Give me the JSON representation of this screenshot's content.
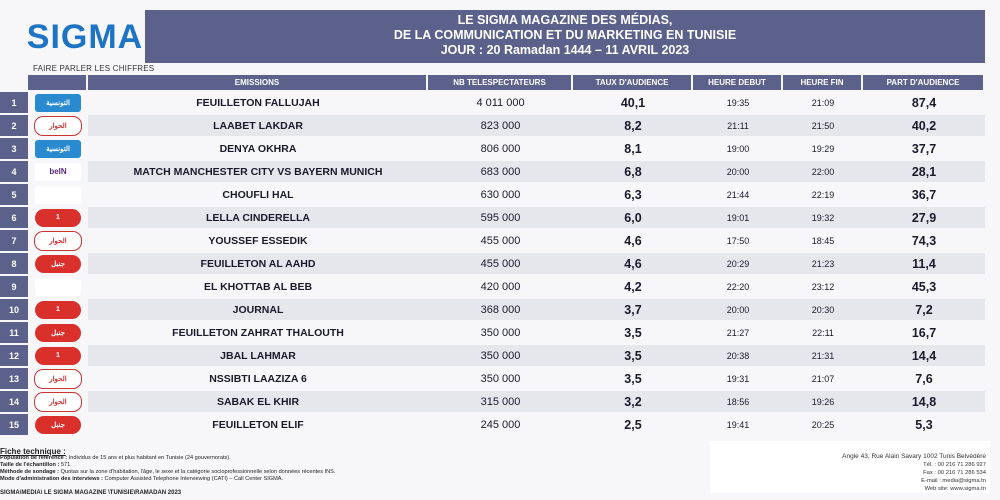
{
  "header": {
    "logo": "SIGMA",
    "tagline": "FAIRE PARLER LES CHIFFRES",
    "title_line1": "LE SIGMA MAGAZINE DES MÉDIAS,",
    "title_line2": "DE LA COMMUNICATION ET DU MARKETING EN TUNISIE",
    "title_line3": "JOUR  : 20 Ramadan 1444 – 11 AVRIL 2023"
  },
  "columns": {
    "emissions": "EMISSIONS",
    "nb": "NB TELESPECTATEURS",
    "taux": "TAUX D'AUDIENCE",
    "debut": "HEURE DEBUT",
    "fin": "HEURE FIN",
    "part": "PART D'AUDIENCE"
  },
  "rows": [
    {
      "rank": "1",
      "channel": "watania",
      "channel_text": "التونسية",
      "emission": "FEUILLETON FALLUJAH",
      "nb": "4 011 000",
      "taux": "40,1",
      "debut": "19:35",
      "fin": "21:09",
      "part": "87,4"
    },
    {
      "rank": "2",
      "channel": "hiwar",
      "channel_text": "الحوار",
      "emission": "LAABET LAKDAR",
      "nb": "823 000",
      "taux": "8,2",
      "debut": "21:11",
      "fin": "21:50",
      "part": "40,2"
    },
    {
      "rank": "3",
      "channel": "watania",
      "channel_text": "التونسية",
      "emission": "DENYA OKHRA",
      "nb": "806 000",
      "taux": "8,1",
      "debut": "19:00",
      "fin": "19:29",
      "part": "37,7"
    },
    {
      "rank": "4",
      "channel": "bein",
      "channel_text": "beIN",
      "emission": "MATCH MANCHESTER CITY VS BAYERN MUNICH",
      "nb": "683 000",
      "taux": "6,8",
      "debut": "20:00",
      "fin": "22:00",
      "part": "28,1"
    },
    {
      "rank": "5",
      "channel": "nessma",
      "channel_text": "",
      "emission": "CHOUFLI HAL",
      "nb": "630 000",
      "taux": "6,3",
      "debut": "21:44",
      "fin": "22:19",
      "part": "36,7"
    },
    {
      "rank": "6",
      "channel": "attessia",
      "channel_text": "1",
      "emission": "LELLA CINDERELLA",
      "nb": "595 000",
      "taux": "6,0",
      "debut": "19:01",
      "fin": "19:32",
      "part": "27,9"
    },
    {
      "rank": "7",
      "channel": "hiwar",
      "channel_text": "الحوار",
      "emission": "YOUSSEF ESSEDIK",
      "nb": "455 000",
      "taux": "4,6",
      "debut": "17:50",
      "fin": "18:45",
      "part": "74,3"
    },
    {
      "rank": "8",
      "channel": "elhiwar",
      "channel_text": "جنبل",
      "emission": "FEUILLETON AL AAHD",
      "nb": "455 000",
      "taux": "4,6",
      "debut": "20:29",
      "fin": "21:23",
      "part": "11,4"
    },
    {
      "rank": "9",
      "channel": "nessma",
      "channel_text": "",
      "emission": "EL KHOTTAB AL BEB",
      "nb": "420 000",
      "taux": "4,2",
      "debut": "22:20",
      "fin": "23:12",
      "part": "45,3"
    },
    {
      "rank": "10",
      "channel": "attessia",
      "channel_text": "1",
      "emission": "JOURNAL",
      "nb": "368 000",
      "taux": "3,7",
      "debut": "20:00",
      "fin": "20:30",
      "part": "7,2"
    },
    {
      "rank": "11",
      "channel": "elhiwar",
      "channel_text": "جنبل",
      "emission": "FEUILLETON ZAHRAT THALOUTH",
      "nb": "350 000",
      "taux": "3,5",
      "debut": "21:27",
      "fin": "22:11",
      "part": "16,7"
    },
    {
      "rank": "12",
      "channel": "attessia",
      "channel_text": "1",
      "emission": "JBAL LAHMAR",
      "nb": "350 000",
      "taux": "3,5",
      "debut": "20:38",
      "fin": "21:31",
      "part": "14,4"
    },
    {
      "rank": "13",
      "channel": "hiwar",
      "channel_text": "الحوار",
      "emission": "NSSIBTI LAAZIZA 6",
      "nb": "350 000",
      "taux": "3,5",
      "debut": "19:31",
      "fin": "21:07",
      "part": "7,6"
    },
    {
      "rank": "14",
      "channel": "hiwar",
      "channel_text": "الحوار",
      "emission": "SABAK EL KHIR",
      "nb": "315 000",
      "taux": "3,2",
      "debut": "18:56",
      "fin": "19:26",
      "part": "14,8"
    },
    {
      "rank": "15",
      "channel": "elhiwar",
      "channel_text": "جنبل",
      "emission": "FEUILLETON ELIF",
      "nb": "245 000",
      "taux": "2,5",
      "debut": "19:41",
      "fin": "20:25",
      "part": "5,3"
    }
  ],
  "fiche": {
    "title": "Fiche technique :",
    "population_label": "Population de référence :",
    "population": "Individus de 15 ans et plus habitant en Tunisie (24 gouvernorats).",
    "taille_label": "Taille de l'échantillon :",
    "taille": "571",
    "methode_label": "Méthode de sondage :",
    "methode": "Quotas sur la zone d'habitation, l'âge, le sexe et la catégorie socioprofessionnelle selon données récentes INS.",
    "mode_label": "Mode d'administration des interviews :",
    "mode": "Computer Assisted Telephone Interviewing (CATI) – Call Center SIGMA."
  },
  "footer": {
    "path": "SIGMA\\MEDIA\\ LE SIGMA MAGAZINE \\TUNISIE\\RAMADAN 2023",
    "address": "Angle 43, Rue Alain Savary 1002 Tunis Belvédère",
    "tel": "Tél. : 00 216 71 286 927",
    "fax": "Fax : 00 216 71 286 534",
    "email": "E-mail : media@sigma.tn",
    "web": "Web site: www.sigma.tn"
  }
}
